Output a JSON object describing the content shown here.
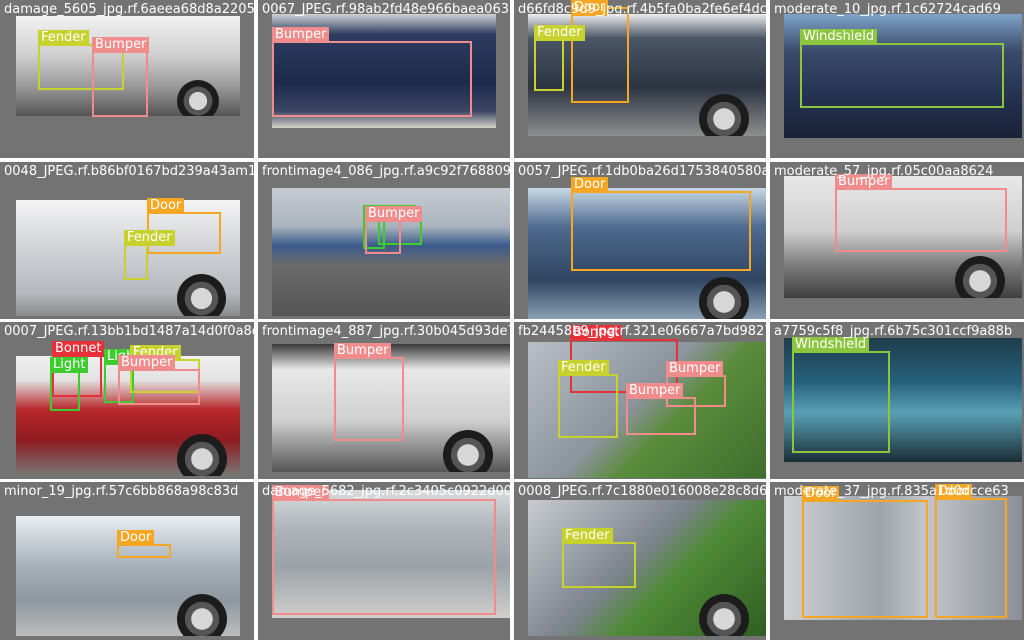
{
  "colors": {
    "Fender": "#c8d22e",
    "Bumper": "#f08c8c",
    "Door": "#f5a623",
    "Windshield": "#8cc63f",
    "Light": "#3dcc2e",
    "Bonnet": "#e8303a",
    "background": "#737373"
  },
  "tiles": [
    {
      "filename": "damage_5605_jpg.rf.6aeea68d8a220587e0f866",
      "labels": [
        {
          "text": "Fender",
          "cls": "Fender"
        },
        {
          "text": "Bumper",
          "cls": "Bumper"
        }
      ]
    },
    {
      "filename": "0067_JPEG.rf.98ab2fd48e966baea0636f5f",
      "labels": [
        {
          "text": "Bumper",
          "cls": "Bumper"
        }
      ]
    },
    {
      "filename": "d66fd8c9d9_jpg.rf.4b5fa0ba2fe6ef4dcd7fd89",
      "labels": [
        {
          "text": "Door",
          "cls": "Door"
        },
        {
          "text": "Fender",
          "cls": "Fender"
        }
      ]
    },
    {
      "filename": "moderate_10_jpg.rf.1c62724cad69",
      "labels": [
        {
          "text": "Windshield",
          "cls": "Windshield"
        }
      ]
    },
    {
      "filename": "0048_JPEG.rf.b86bf0167bd239a43am1764b590b",
      "labels": [
        {
          "text": "Door",
          "cls": "Door"
        },
        {
          "text": "Fender",
          "cls": "Fender"
        }
      ]
    },
    {
      "filename": "frontimage4_086_jpg.rf.a9c92f76880940572",
      "labels": [
        {
          "text": "Light",
          "cls": "Light"
        },
        {
          "text": "Light",
          "cls": "Light"
        },
        {
          "text": "Bumper",
          "cls": "Bumper"
        }
      ]
    },
    {
      "filename": "0057_JPEG.rf.1db0ba26d1753840580aa557677",
      "labels": [
        {
          "text": "Door",
          "cls": "Door"
        }
      ]
    },
    {
      "filename": "moderate_57_jpg.rf.05c00aa8624",
      "labels": [
        {
          "text": "Bumper",
          "cls": "Bumper"
        }
      ]
    },
    {
      "filename": "0007_JPEG.rf.13bb1bd1487a14d0f0a8eage4_887",
      "labels": [
        {
          "text": "Bonnet",
          "cls": "Bonnet"
        },
        {
          "text": "Light",
          "cls": "Light"
        },
        {
          "text": "Light",
          "cls": "Light"
        },
        {
          "text": "Fender",
          "cls": "Fender"
        },
        {
          "text": "Bumper",
          "cls": "Bumper"
        }
      ]
    },
    {
      "filename": "frontimage4_887_jpg.rf.30b045d93de7c1424f",
      "labels": [
        {
          "text": "Bumper",
          "cls": "Bumper"
        }
      ]
    },
    {
      "filename": "fb24458b9_jpg.rf.321e06667a7bd98275a5688",
      "labels": [
        {
          "text": "Bonnet",
          "cls": "Bonnet"
        },
        {
          "text": "Fender",
          "cls": "Fender"
        },
        {
          "text": "Bumper",
          "cls": "Bumper"
        },
        {
          "text": "Bumper",
          "cls": "Bumper"
        }
      ]
    },
    {
      "filename": "a7759c5f8_jpg.rf.6b75c301ccf9a88b",
      "labels": [
        {
          "text": "Windshield",
          "cls": "Windshield"
        }
      ]
    },
    {
      "filename": "minor_19_jpg.rf.57c6bb868a98c83d",
      "labels": [
        {
          "text": "Door",
          "cls": "Door"
        }
      ]
    },
    {
      "filename": "damage_5682_jpg.rf.2c3405c0922d0008e3e2",
      "labels": [
        {
          "text": "Bumper",
          "cls": "Bumper"
        }
      ]
    },
    {
      "filename": "0008_JPEG.rf.7c1880e016008e28c8d6496b",
      "labels": [
        {
          "text": "Fender",
          "cls": "Fender"
        }
      ]
    },
    {
      "filename": "moderate_37_jpg.rf.835a1d0dcce63",
      "labels": [
        {
          "text": "Door",
          "cls": "Door"
        },
        {
          "text": "Door",
          "cls": "Door"
        }
      ]
    }
  ]
}
